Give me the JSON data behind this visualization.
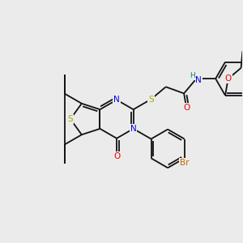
{
  "background_color": "#ebebeb",
  "atom_colors": {
    "S": "#aaaa00",
    "N": "#0000ee",
    "O": "#ee0000",
    "Br": "#cc6600",
    "C": "#111111",
    "H": "#008888"
  },
  "bond_color": "#111111",
  "bond_width": 1.3,
  "font_size_atoms": 7.5,
  "figsize": [
    3.0,
    3.0
  ],
  "dpi": 100
}
